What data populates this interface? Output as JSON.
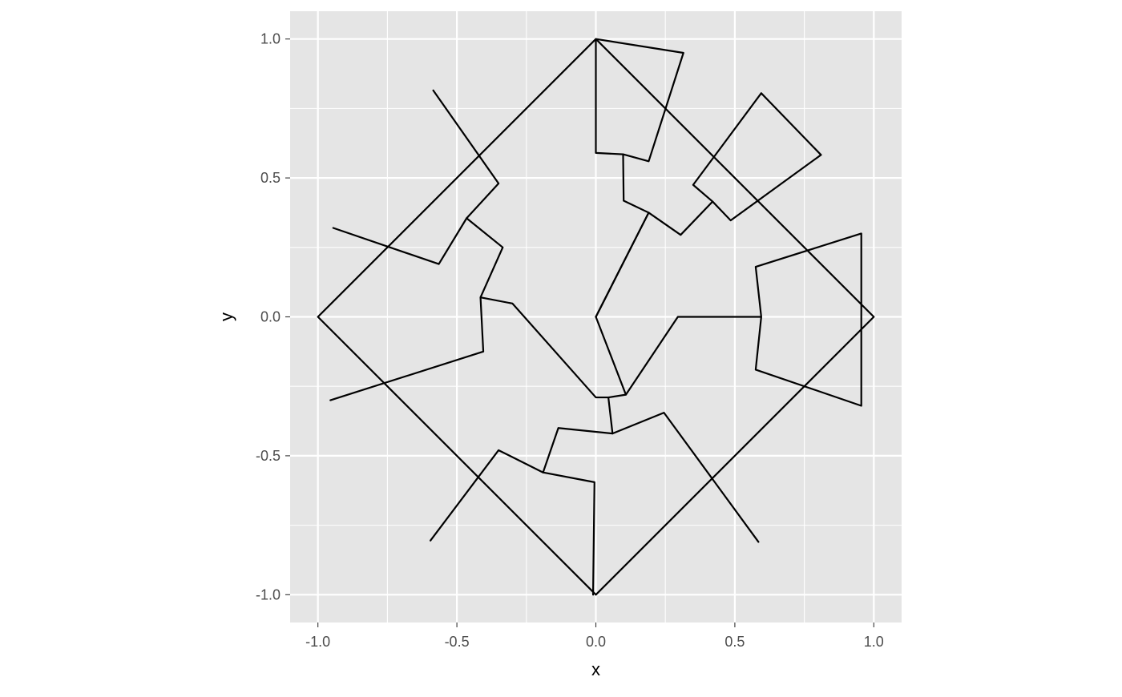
{
  "chart_data": {
    "type": "line",
    "title": "",
    "xlabel": "x",
    "ylabel": "y",
    "xlim": [
      -1.1,
      1.1
    ],
    "ylim": [
      -1.1,
      1.1
    ],
    "x_ticks": [
      -1.0,
      -0.5,
      0.0,
      0.5,
      1.0
    ],
    "y_ticks": [
      -1.0,
      -0.5,
      0.0,
      0.5,
      1.0
    ],
    "x_tick_labels": [
      "-1.0",
      "-0.5",
      "0.0",
      "0.5",
      "1.0"
    ],
    "y_tick_labels": [
      "-1.0",
      "-0.5",
      "0.0",
      "0.5",
      "1.0"
    ],
    "grid": true,
    "aspect": "equal",
    "panel_background": "#e5e5e5",
    "grid_color": "#ffffff",
    "line_color": "#000000",
    "series": [
      {
        "points": [
          [
            0.0,
            0.0
          ],
          [
            0.19,
            0.375
          ],
          [
            0.305,
            0.295
          ],
          [
            0.42,
            0.415
          ],
          [
            0.35,
            0.475
          ],
          [
            0.595,
            0.805
          ],
          [
            0.81,
            0.583
          ],
          [
            0.485,
            0.347
          ],
          [
            0.42,
            0.415
          ]
        ]
      },
      {
        "points": [
          [
            0.0,
            0.0
          ],
          [
            0.108,
            -0.28
          ],
          [
            0.295,
            0.0
          ],
          [
            0.595,
            0.0
          ],
          [
            0.575,
            0.18
          ],
          [
            0.955,
            0.3
          ],
          [
            0.955,
            -0.32
          ],
          [
            0.575,
            -0.19
          ],
          [
            0.595,
            0.0
          ]
        ]
      },
      {
        "points": [
          [
            0.108,
            -0.28
          ],
          [
            0.045,
            -0.29
          ],
          [
            0.06,
            -0.42
          ],
          [
            0.245,
            -0.345
          ],
          [
            0.585,
            -0.81
          ]
        ]
      },
      {
        "points": [
          [
            0.045,
            -0.29
          ],
          [
            0.0,
            -0.29
          ],
          [
            -0.3,
            0.048
          ],
          [
            -0.415,
            0.07
          ],
          [
            -0.335,
            0.25
          ],
          [
            -0.465,
            0.355
          ],
          [
            -0.35,
            0.48
          ],
          [
            -0.585,
            0.815
          ]
        ]
      },
      {
        "points": [
          [
            -0.465,
            0.355
          ],
          [
            -0.565,
            0.19
          ],
          [
            -0.945,
            0.32
          ]
        ]
      },
      {
        "points": [
          [
            -0.415,
            0.07
          ],
          [
            -0.405,
            -0.125
          ],
          [
            -0.955,
            -0.3
          ]
        ]
      },
      {
        "points": [
          [
            0.06,
            -0.42
          ],
          [
            -0.135,
            -0.4
          ],
          [
            -0.19,
            -0.56
          ],
          [
            -0.35,
            -0.48
          ],
          [
            -0.595,
            -0.805
          ]
        ]
      },
      {
        "points": [
          [
            -0.19,
            -0.56
          ],
          [
            -0.005,
            -0.595
          ],
          [
            -0.01,
            -1.0
          ]
        ]
      },
      {
        "points": [
          [
            0.0,
            0.0
          ],
          [
            0.19,
            0.375
          ],
          [
            0.1,
            0.418
          ],
          [
            0.098,
            0.585
          ],
          [
            0.19,
            0.56
          ],
          [
            0.315,
            0.95
          ],
          [
            0.0,
            1.0
          ],
          [
            0.0,
            0.59
          ],
          [
            0.098,
            0.585
          ]
        ]
      },
      {
        "points": [
          [
            1.0,
            0.0
          ],
          [
            0.0,
            1.0
          ],
          [
            -1.0,
            0.0
          ],
          [
            0.0,
            -1.0
          ],
          [
            1.0,
            0.0
          ]
        ]
      }
    ]
  }
}
